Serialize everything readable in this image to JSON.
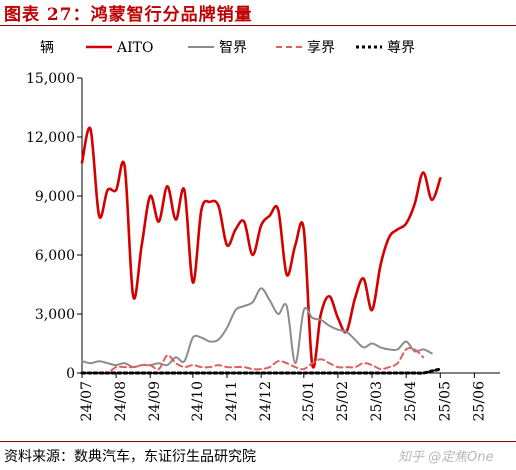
{
  "figure": {
    "title": "图表 27：鸿蒙智行分品牌销量",
    "source": "资料来源：数典汽车，东证衍生品研究院",
    "watermark": "知乎 @定焦One"
  },
  "colors": {
    "AITO": "#d40000",
    "智界": "#8c8c8c",
    "享界": "#e06060",
    "尊界": "#000000",
    "title": "#c00000"
  },
  "chart_data": {
    "type": "line",
    "ylabel": "辆",
    "ylim": [
      0,
      15000
    ],
    "yticks": [
      0,
      3000,
      6000,
      9000,
      12000,
      15000
    ],
    "ytick_labels": [
      "0",
      "3,000",
      "6,000",
      "9,000",
      "12,000",
      "15,000"
    ],
    "xticks": [
      "24/07",
      "24/08",
      "24/09",
      "24/10",
      "24/11",
      "24/12",
      "25/01",
      "25/02",
      "25/03",
      "25/04",
      "25/05",
      "25/06"
    ],
    "x_unit": "week_index",
    "xlim": [
      0,
      49
    ],
    "month_week_offsets": [
      0,
      4,
      8,
      13,
      17,
      21,
      26,
      30,
      34,
      38,
      42,
      46
    ],
    "legend_placement": "top",
    "grid": false,
    "series": [
      {
        "name": "AITO",
        "style": "solid",
        "values": [
          10700,
          12400,
          8000,
          9300,
          9300,
          10500,
          3900,
          6500,
          9000,
          7700,
          9500,
          7800,
          9300,
          4600,
          8300,
          8700,
          8500,
          6500,
          7300,
          7700,
          6000,
          7500,
          8000,
          8300,
          5000,
          6500,
          7300,
          400,
          3000,
          3900,
          2800,
          2100,
          3800,
          4800,
          3200,
          5500,
          6900,
          7300,
          7600,
          8600,
          10200,
          8800,
          9900
        ]
      },
      {
        "name": "智界",
        "style": "solid",
        "values": [
          600,
          500,
          600,
          500,
          400,
          500,
          300,
          400,
          400,
          500,
          400,
          800,
          600,
          1800,
          1800,
          1600,
          1700,
          2300,
          3200,
          3400,
          3600,
          4300,
          3700,
          3000,
          3400,
          500,
          3200,
          2800,
          2700,
          2400,
          2200,
          2100,
          1700,
          1300,
          1500,
          1300,
          1200,
          1200,
          1600,
          1100,
          1200,
          1000
        ]
      },
      {
        "name": "享界",
        "style": "dashed",
        "values": [
          0,
          0,
          0,
          0,
          300,
          300,
          300,
          400,
          400,
          200,
          900,
          500,
          300,
          400,
          300,
          300,
          400,
          300,
          300,
          300,
          200,
          200,
          300,
          600,
          500,
          300,
          200,
          500,
          700,
          500,
          300,
          300,
          300,
          500,
          400,
          200,
          300,
          500,
          1200,
          1200,
          800
        ]
      },
      {
        "name": "尊界",
        "style": "dashed",
        "values": [
          0,
          0,
          0,
          0,
          0,
          0,
          0,
          0,
          0,
          0,
          0,
          0,
          0,
          0,
          0,
          0,
          0,
          0,
          0,
          0,
          0,
          0,
          0,
          0,
          0,
          0,
          0,
          0,
          0,
          0,
          0,
          0,
          0,
          0,
          0,
          0,
          0,
          0,
          0,
          0,
          0,
          100,
          200
        ]
      }
    ]
  }
}
